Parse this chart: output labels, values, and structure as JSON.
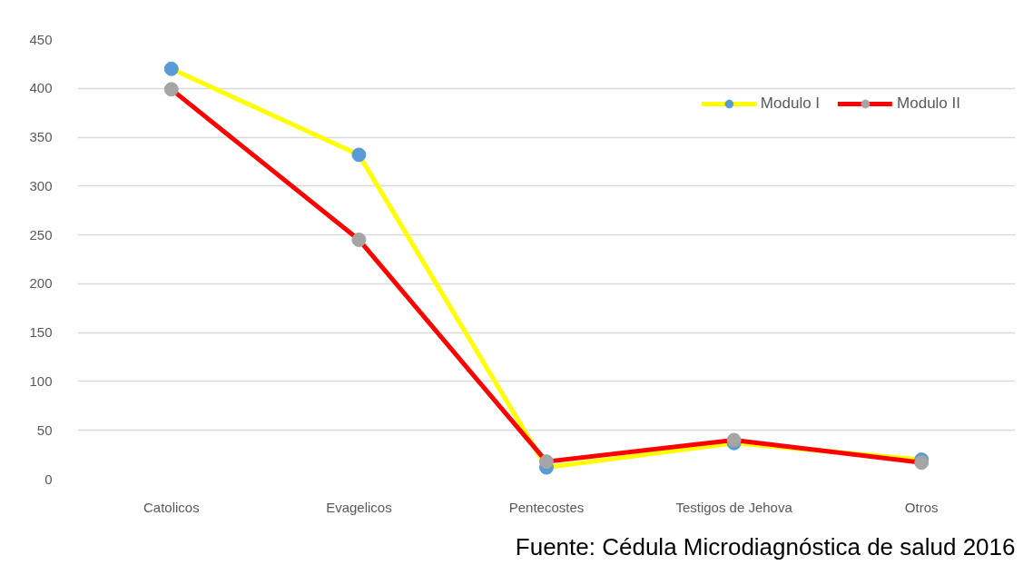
{
  "chart_data": {
    "type": "line",
    "categories": [
      "Catolicos",
      "Evagelicos",
      "Pentecostes",
      "Testigos de Jehova",
      "Otros"
    ],
    "series": [
      {
        "name": "Modulo I",
        "color": "#ffff00",
        "colors": [
          "#5b9bd5",
          "#5b9bd5",
          "#5b9bd5",
          "#5b9bd5",
          "#5b9bd5"
        ],
        "values": [
          420,
          332,
          12,
          37,
          20
        ]
      },
      {
        "name": "Modulo II",
        "color": "#ff0000",
        "colors": [
          "#a5a5a5",
          "#a5a5a5",
          "#a5a5a5",
          "#a5a5a5",
          "#a5a5a5"
        ],
        "values": [
          399,
          245,
          18,
          40,
          17
        ]
      }
    ],
    "ylim": [
      0,
      450
    ],
    "yticks": [
      0,
      50,
      100,
      150,
      200,
      250,
      300,
      350,
      400,
      450
    ],
    "grid": "y",
    "legend": "top right",
    "marker": "circle",
    "line_style": "solid",
    "annotations": [
      "Fuente: Cédula Microdiagnóstica de salud 2016"
    ]
  }
}
